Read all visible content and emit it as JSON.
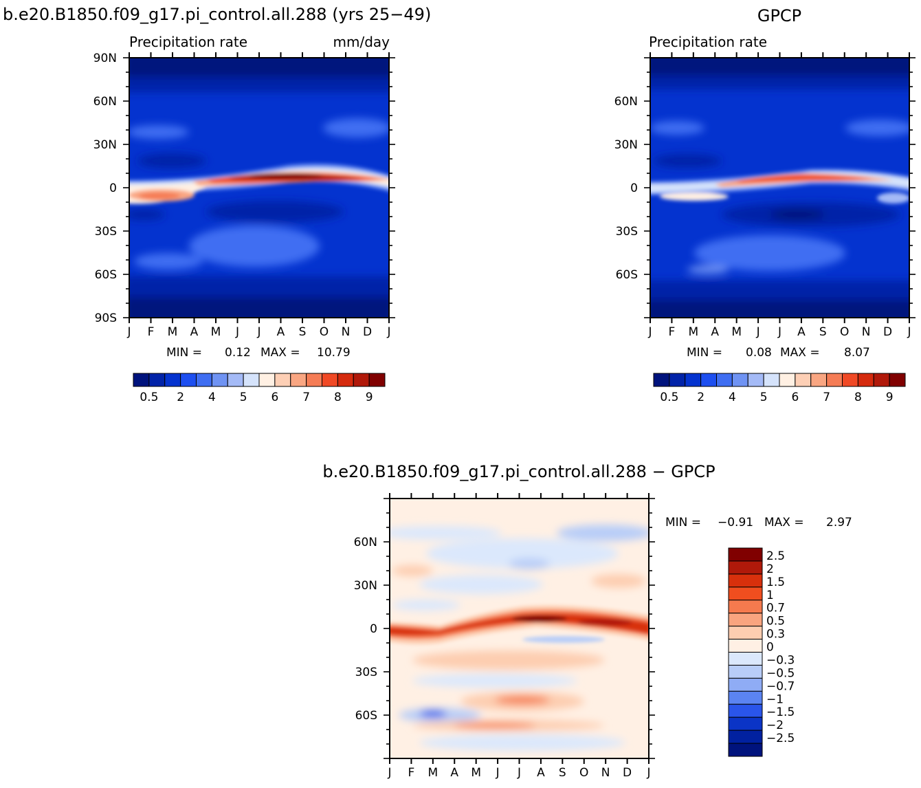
{
  "chart_data": [
    {
      "type": "heatmap",
      "title": "b.e20.B1850.f09_g17.pi_control.all.288 (yrs 25−49)",
      "subtitle_left": "Precipitation rate",
      "subtitle_right": "mm/day",
      "x_ticks": [
        "J",
        "F",
        "M",
        "A",
        "M",
        "J",
        "J",
        "A",
        "S",
        "O",
        "N",
        "D",
        "J"
      ],
      "y_ticks": [
        "90N",
        "60N",
        "30N",
        "0",
        "30S",
        "60S",
        "90S"
      ],
      "y_tick_values": [
        90,
        60,
        30,
        0,
        -30,
        -60,
        -90
      ],
      "ylim": [
        -90,
        90
      ],
      "min_label": "MIN =",
      "min_value": "0.12",
      "max_label": "MAX =",
      "max_value": "10.79",
      "colorbar_labels": [
        "0.5",
        "2",
        "4",
        "5",
        "6",
        "7",
        "8",
        "9"
      ],
      "colorbar_colors": [
        "#00137d",
        "#0123a8",
        "#0433cf",
        "#1d4ff0",
        "#3f6ef2",
        "#6f93f3",
        "#a4baf6",
        "#d5e3fb",
        "#fff0e3",
        "#fdcfb5",
        "#f9a682",
        "#f57c55",
        "#f04925",
        "#d52a0d",
        "#b1190a",
        "#800000"
      ],
      "features": [
        "ITCZ maximum near 5N peaking Jul-Sep",
        "southern tropical maximum Feb-Mar",
        "low values in subtropics and polar regions"
      ]
    },
    {
      "type": "heatmap",
      "title": "GPCP",
      "subtitle_left": "Precipitation rate",
      "x_ticks": [
        "J",
        "F",
        "M",
        "A",
        "M",
        "J",
        "J",
        "A",
        "S",
        "O",
        "N",
        "D",
        "J"
      ],
      "y_ticks": [
        "60N",
        "30N",
        "0",
        "30S",
        "60S"
      ],
      "y_tick_values": [
        60,
        30,
        0,
        -30,
        -60
      ],
      "ylim": [
        -90,
        90
      ],
      "min_label": "MIN =",
      "min_value": "0.08",
      "max_label": "MAX =",
      "max_value": "8.07",
      "colorbar_labels": [
        "0.5",
        "2",
        "4",
        "5",
        "6",
        "7",
        "8",
        "9"
      ],
      "colorbar_colors": [
        "#00137d",
        "#0123a8",
        "#0433cf",
        "#1d4ff0",
        "#3f6ef2",
        "#6f93f3",
        "#a4baf6",
        "#d5e3fb",
        "#fff0e3",
        "#fdcfb5",
        "#f9a682",
        "#f57c55",
        "#f04925",
        "#d52a0d",
        "#b1190a",
        "#800000"
      ]
    },
    {
      "type": "heatmap",
      "title": "b.e20.B1850.f09_g17.pi_control.all.288 − GPCP",
      "x_ticks": [
        "J",
        "F",
        "M",
        "A",
        "M",
        "J",
        "J",
        "A",
        "S",
        "O",
        "N",
        "D",
        "J"
      ],
      "y_ticks": [
        "60N",
        "30N",
        "0",
        "30S",
        "60S"
      ],
      "y_tick_values": [
        60,
        30,
        0,
        -30,
        -60
      ],
      "ylim": [
        -90,
        90
      ],
      "min_label": "MIN =",
      "min_value": "−0.91",
      "max_label": "MAX =",
      "max_value": "2.97",
      "colorbar_labels": [
        "2.5",
        "2",
        "1.5",
        "1",
        "0.7",
        "0.5",
        "0.3",
        "0",
        "−0.3",
        "−0.5",
        "−0.7",
        "−1",
        "−1.5",
        "−2",
        "−2.5"
      ],
      "colorbar_colors": [
        "#800000",
        "#b0190a",
        "#d8300c",
        "#f04e1f",
        "#f57a4e",
        "#f9a47f",
        "#fdcdb0",
        "#fff0e4",
        "#dbe8fc",
        "#b8cdf8",
        "#8facf5",
        "#5b84f2",
        "#2a55ea",
        "#0b34c6",
        "#0121a0",
        "#00137d"
      ],
      "features": [
        "positive bias along tropical belt near 0-10N",
        "weak negative bias over high latitudes"
      ]
    }
  ]
}
